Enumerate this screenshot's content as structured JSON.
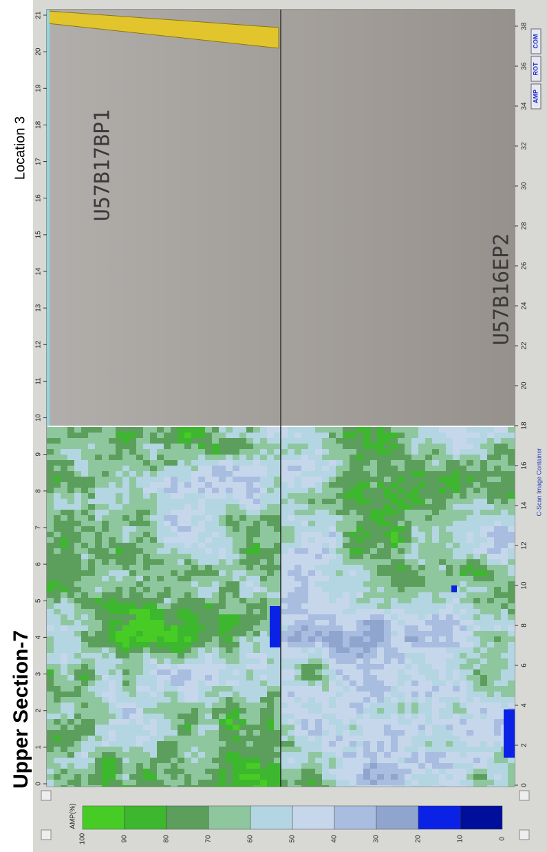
{
  "header": {
    "title": "Upper  Section-7",
    "location": "Location 3"
  },
  "colorbar": {
    "label": "AMP(%)",
    "ticks": [
      "100",
      "90",
      "80",
      "70",
      "60",
      "50",
      "40",
      "30",
      "20",
      "10",
      "0"
    ],
    "colors": [
      "#47cc26",
      "#3db72e",
      "#5c9f5c",
      "#8ec79e",
      "#b3d6e2",
      "#c6d7ec",
      "#a9bde0",
      "#8fa5cd",
      "#0a22e6",
      "#000f99"
    ]
  },
  "y_axis": {
    "ticks": [
      "0",
      "1",
      "2",
      "3",
      "4",
      "5",
      "6",
      "7",
      "8",
      "9",
      "10",
      "11",
      "12",
      "13",
      "14",
      "15",
      "16",
      "17",
      "18",
      "19",
      "20",
      "21"
    ]
  },
  "x_axis": {
    "ticks": [
      "0",
      "2",
      "4",
      "6",
      "8",
      "10",
      "12",
      "14",
      "16",
      "18",
      "20",
      "22",
      "24",
      "26",
      "28",
      "30",
      "32",
      "34",
      "36",
      "38"
    ]
  },
  "photo_labels": [
    "U57B17BP1",
    "U57B16EP2"
  ],
  "container_label": "C-Scan Image Container",
  "buttons": [
    "AMP",
    "ROT",
    "COM"
  ]
}
